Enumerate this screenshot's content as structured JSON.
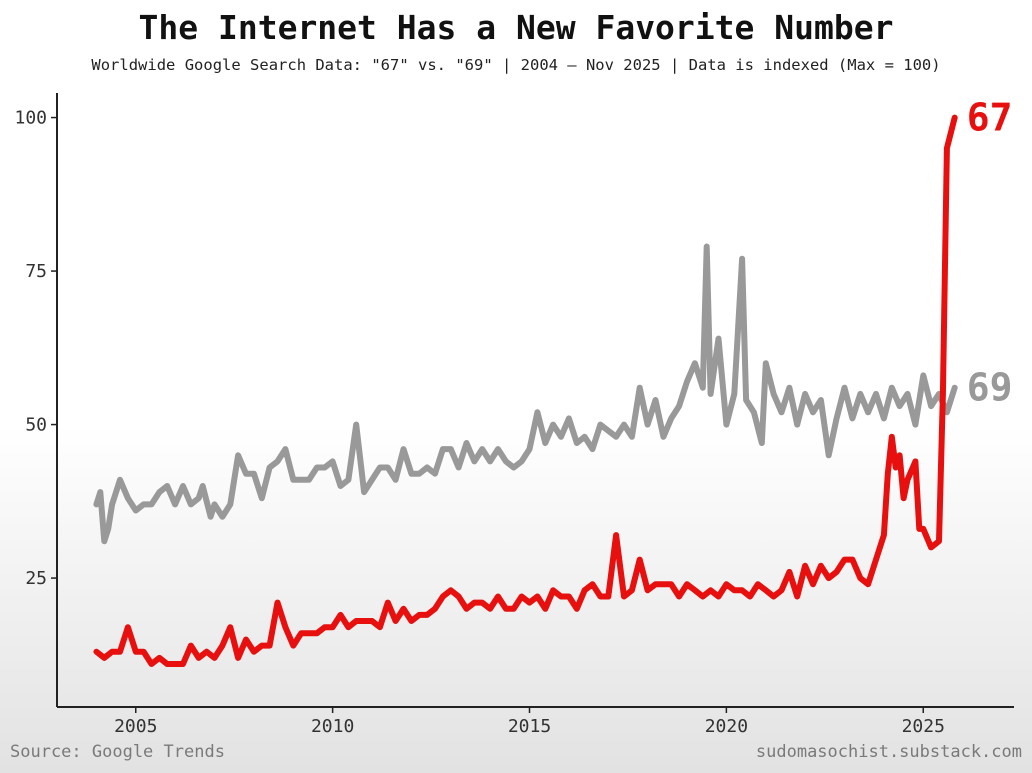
{
  "chart_data": {
    "type": "line",
    "title": "The Internet Has a New Favorite Number",
    "subtitle": "Worldwide Google Search Data: \"67\" vs. \"69\" | 2004 – Nov 2025 | Data is indexed (Max = 100)",
    "xlabel": "",
    "ylabel": "",
    "xlim": [
      2003.0,
      2027.0
    ],
    "ylim": [
      4,
      104
    ],
    "x_ticks": [
      2005,
      2010,
      2015,
      2020,
      2025
    ],
    "x_tick_labels": [
      "2005",
      "2010",
      "2015",
      "2020",
      "2025"
    ],
    "y_ticks": [
      25,
      50,
      75,
      100
    ],
    "y_tick_labels": [
      "25",
      "50",
      "75",
      "100"
    ],
    "grid": false,
    "legend": "direct labels at line ends",
    "series": [
      {
        "name": "69",
        "label": "69",
        "color": "#999999",
        "points": [
          [
            2004.0,
            37
          ],
          [
            2004.1,
            39
          ],
          [
            2004.2,
            31
          ],
          [
            2004.3,
            33
          ],
          [
            2004.4,
            37
          ],
          [
            2004.6,
            41
          ],
          [
            2004.8,
            38
          ],
          [
            2005.0,
            36
          ],
          [
            2005.2,
            37
          ],
          [
            2005.4,
            37
          ],
          [
            2005.6,
            39
          ],
          [
            2005.8,
            40
          ],
          [
            2006.0,
            37
          ],
          [
            2006.2,
            40
          ],
          [
            2006.4,
            37
          ],
          [
            2006.6,
            38
          ],
          [
            2006.7,
            40
          ],
          [
            2006.9,
            35
          ],
          [
            2007.0,
            37
          ],
          [
            2007.2,
            35
          ],
          [
            2007.4,
            37
          ],
          [
            2007.6,
            45
          ],
          [
            2007.8,
            42
          ],
          [
            2008.0,
            42
          ],
          [
            2008.2,
            38
          ],
          [
            2008.4,
            43
          ],
          [
            2008.6,
            44
          ],
          [
            2008.8,
            46
          ],
          [
            2009.0,
            41
          ],
          [
            2009.2,
            41
          ],
          [
            2009.4,
            41
          ],
          [
            2009.6,
            43
          ],
          [
            2009.8,
            43
          ],
          [
            2010.0,
            44
          ],
          [
            2010.2,
            40
          ],
          [
            2010.4,
            41
          ],
          [
            2010.6,
            50
          ],
          [
            2010.8,
            39
          ],
          [
            2011.0,
            41
          ],
          [
            2011.2,
            43
          ],
          [
            2011.4,
            43
          ],
          [
            2011.6,
            41
          ],
          [
            2011.8,
            46
          ],
          [
            2012.0,
            42
          ],
          [
            2012.2,
            42
          ],
          [
            2012.4,
            43
          ],
          [
            2012.6,
            42
          ],
          [
            2012.8,
            46
          ],
          [
            2013.0,
            46
          ],
          [
            2013.2,
            43
          ],
          [
            2013.4,
            47
          ],
          [
            2013.6,
            44
          ],
          [
            2013.8,
            46
          ],
          [
            2014.0,
            44
          ],
          [
            2014.2,
            46
          ],
          [
            2014.4,
            44
          ],
          [
            2014.6,
            43
          ],
          [
            2014.8,
            44
          ],
          [
            2015.0,
            46
          ],
          [
            2015.2,
            52
          ],
          [
            2015.4,
            47
          ],
          [
            2015.6,
            50
          ],
          [
            2015.8,
            48
          ],
          [
            2016.0,
            51
          ],
          [
            2016.2,
            47
          ],
          [
            2016.4,
            48
          ],
          [
            2016.6,
            46
          ],
          [
            2016.8,
            50
          ],
          [
            2017.0,
            49
          ],
          [
            2017.2,
            48
          ],
          [
            2017.4,
            50
          ],
          [
            2017.6,
            48
          ],
          [
            2017.8,
            56
          ],
          [
            2018.0,
            50
          ],
          [
            2018.2,
            54
          ],
          [
            2018.4,
            48
          ],
          [
            2018.6,
            51
          ],
          [
            2018.8,
            53
          ],
          [
            2019.0,
            57
          ],
          [
            2019.2,
            60
          ],
          [
            2019.4,
            56
          ],
          [
            2019.5,
            79
          ],
          [
            2019.6,
            55
          ],
          [
            2019.8,
            64
          ],
          [
            2020.0,
            50
          ],
          [
            2020.2,
            55
          ],
          [
            2020.4,
            77
          ],
          [
            2020.5,
            54
          ],
          [
            2020.7,
            52
          ],
          [
            2020.9,
            47
          ],
          [
            2021.0,
            60
          ],
          [
            2021.2,
            55
          ],
          [
            2021.4,
            52
          ],
          [
            2021.6,
            56
          ],
          [
            2021.8,
            50
          ],
          [
            2022.0,
            55
          ],
          [
            2022.2,
            52
          ],
          [
            2022.4,
            54
          ],
          [
            2022.6,
            45
          ],
          [
            2022.8,
            51
          ],
          [
            2023.0,
            56
          ],
          [
            2023.2,
            51
          ],
          [
            2023.4,
            55
          ],
          [
            2023.6,
            52
          ],
          [
            2023.8,
            55
          ],
          [
            2024.0,
            51
          ],
          [
            2024.2,
            56
          ],
          [
            2024.4,
            53
          ],
          [
            2024.6,
            55
          ],
          [
            2024.8,
            50
          ],
          [
            2025.0,
            58
          ],
          [
            2025.2,
            53
          ],
          [
            2025.4,
            55
          ],
          [
            2025.6,
            52
          ],
          [
            2025.8,
            56
          ]
        ]
      },
      {
        "name": "67",
        "label": "67",
        "color": "#e8100f",
        "points": [
          [
            2004.0,
            13
          ],
          [
            2004.2,
            12
          ],
          [
            2004.4,
            13
          ],
          [
            2004.6,
            13
          ],
          [
            2004.8,
            17
          ],
          [
            2005.0,
            13
          ],
          [
            2005.2,
            13
          ],
          [
            2005.4,
            11
          ],
          [
            2005.6,
            12
          ],
          [
            2005.8,
            11
          ],
          [
            2006.0,
            11
          ],
          [
            2006.2,
            11
          ],
          [
            2006.4,
            14
          ],
          [
            2006.6,
            12
          ],
          [
            2006.8,
            13
          ],
          [
            2007.0,
            12
          ],
          [
            2007.2,
            14
          ],
          [
            2007.4,
            17
          ],
          [
            2007.6,
            12
          ],
          [
            2007.8,
            15
          ],
          [
            2008.0,
            13
          ],
          [
            2008.2,
            14
          ],
          [
            2008.4,
            14
          ],
          [
            2008.6,
            21
          ],
          [
            2008.8,
            17
          ],
          [
            2009.0,
            14
          ],
          [
            2009.2,
            16
          ],
          [
            2009.4,
            16
          ],
          [
            2009.6,
            16
          ],
          [
            2009.8,
            17
          ],
          [
            2010.0,
            17
          ],
          [
            2010.2,
            19
          ],
          [
            2010.4,
            17
          ],
          [
            2010.6,
            18
          ],
          [
            2010.8,
            18
          ],
          [
            2011.0,
            18
          ],
          [
            2011.2,
            17
          ],
          [
            2011.4,
            21
          ],
          [
            2011.6,
            18
          ],
          [
            2011.8,
            20
          ],
          [
            2012.0,
            18
          ],
          [
            2012.2,
            19
          ],
          [
            2012.4,
            19
          ],
          [
            2012.6,
            20
          ],
          [
            2012.8,
            22
          ],
          [
            2013.0,
            23
          ],
          [
            2013.2,
            22
          ],
          [
            2013.4,
            20
          ],
          [
            2013.6,
            21
          ],
          [
            2013.8,
            21
          ],
          [
            2014.0,
            20
          ],
          [
            2014.2,
            22
          ],
          [
            2014.4,
            20
          ],
          [
            2014.6,
            20
          ],
          [
            2014.8,
            22
          ],
          [
            2015.0,
            21
          ],
          [
            2015.2,
            22
          ],
          [
            2015.4,
            20
          ],
          [
            2015.6,
            23
          ],
          [
            2015.8,
            22
          ],
          [
            2016.0,
            22
          ],
          [
            2016.2,
            20
          ],
          [
            2016.4,
            23
          ],
          [
            2016.6,
            24
          ],
          [
            2016.8,
            22
          ],
          [
            2017.0,
            22
          ],
          [
            2017.2,
            32
          ],
          [
            2017.4,
            22
          ],
          [
            2017.6,
            23
          ],
          [
            2017.8,
            28
          ],
          [
            2018.0,
            23
          ],
          [
            2018.2,
            24
          ],
          [
            2018.4,
            24
          ],
          [
            2018.6,
            24
          ],
          [
            2018.8,
            22
          ],
          [
            2019.0,
            24
          ],
          [
            2019.2,
            23
          ],
          [
            2019.4,
            22
          ],
          [
            2019.6,
            23
          ],
          [
            2019.8,
            22
          ],
          [
            2020.0,
            24
          ],
          [
            2020.2,
            23
          ],
          [
            2020.4,
            23
          ],
          [
            2020.6,
            22
          ],
          [
            2020.8,
            24
          ],
          [
            2021.0,
            23
          ],
          [
            2021.2,
            22
          ],
          [
            2021.4,
            23
          ],
          [
            2021.6,
            26
          ],
          [
            2021.8,
            22
          ],
          [
            2022.0,
            27
          ],
          [
            2022.2,
            24
          ],
          [
            2022.4,
            27
          ],
          [
            2022.6,
            25
          ],
          [
            2022.8,
            26
          ],
          [
            2023.0,
            28
          ],
          [
            2023.2,
            28
          ],
          [
            2023.4,
            25
          ],
          [
            2023.6,
            24
          ],
          [
            2023.8,
            28
          ],
          [
            2024.0,
            32
          ],
          [
            2024.1,
            42
          ],
          [
            2024.2,
            48
          ],
          [
            2024.3,
            43
          ],
          [
            2024.4,
            45
          ],
          [
            2024.5,
            38
          ],
          [
            2024.6,
            41
          ],
          [
            2024.8,
            44
          ],
          [
            2024.9,
            33
          ],
          [
            2025.0,
            33
          ],
          [
            2025.2,
            30
          ],
          [
            2025.4,
            31
          ],
          [
            2025.5,
            55
          ],
          [
            2025.6,
            95
          ],
          [
            2025.8,
            100
          ]
        ]
      }
    ]
  },
  "footer": {
    "source": "Source: Google Trends",
    "credit": "sudomasochist.substack.com"
  }
}
